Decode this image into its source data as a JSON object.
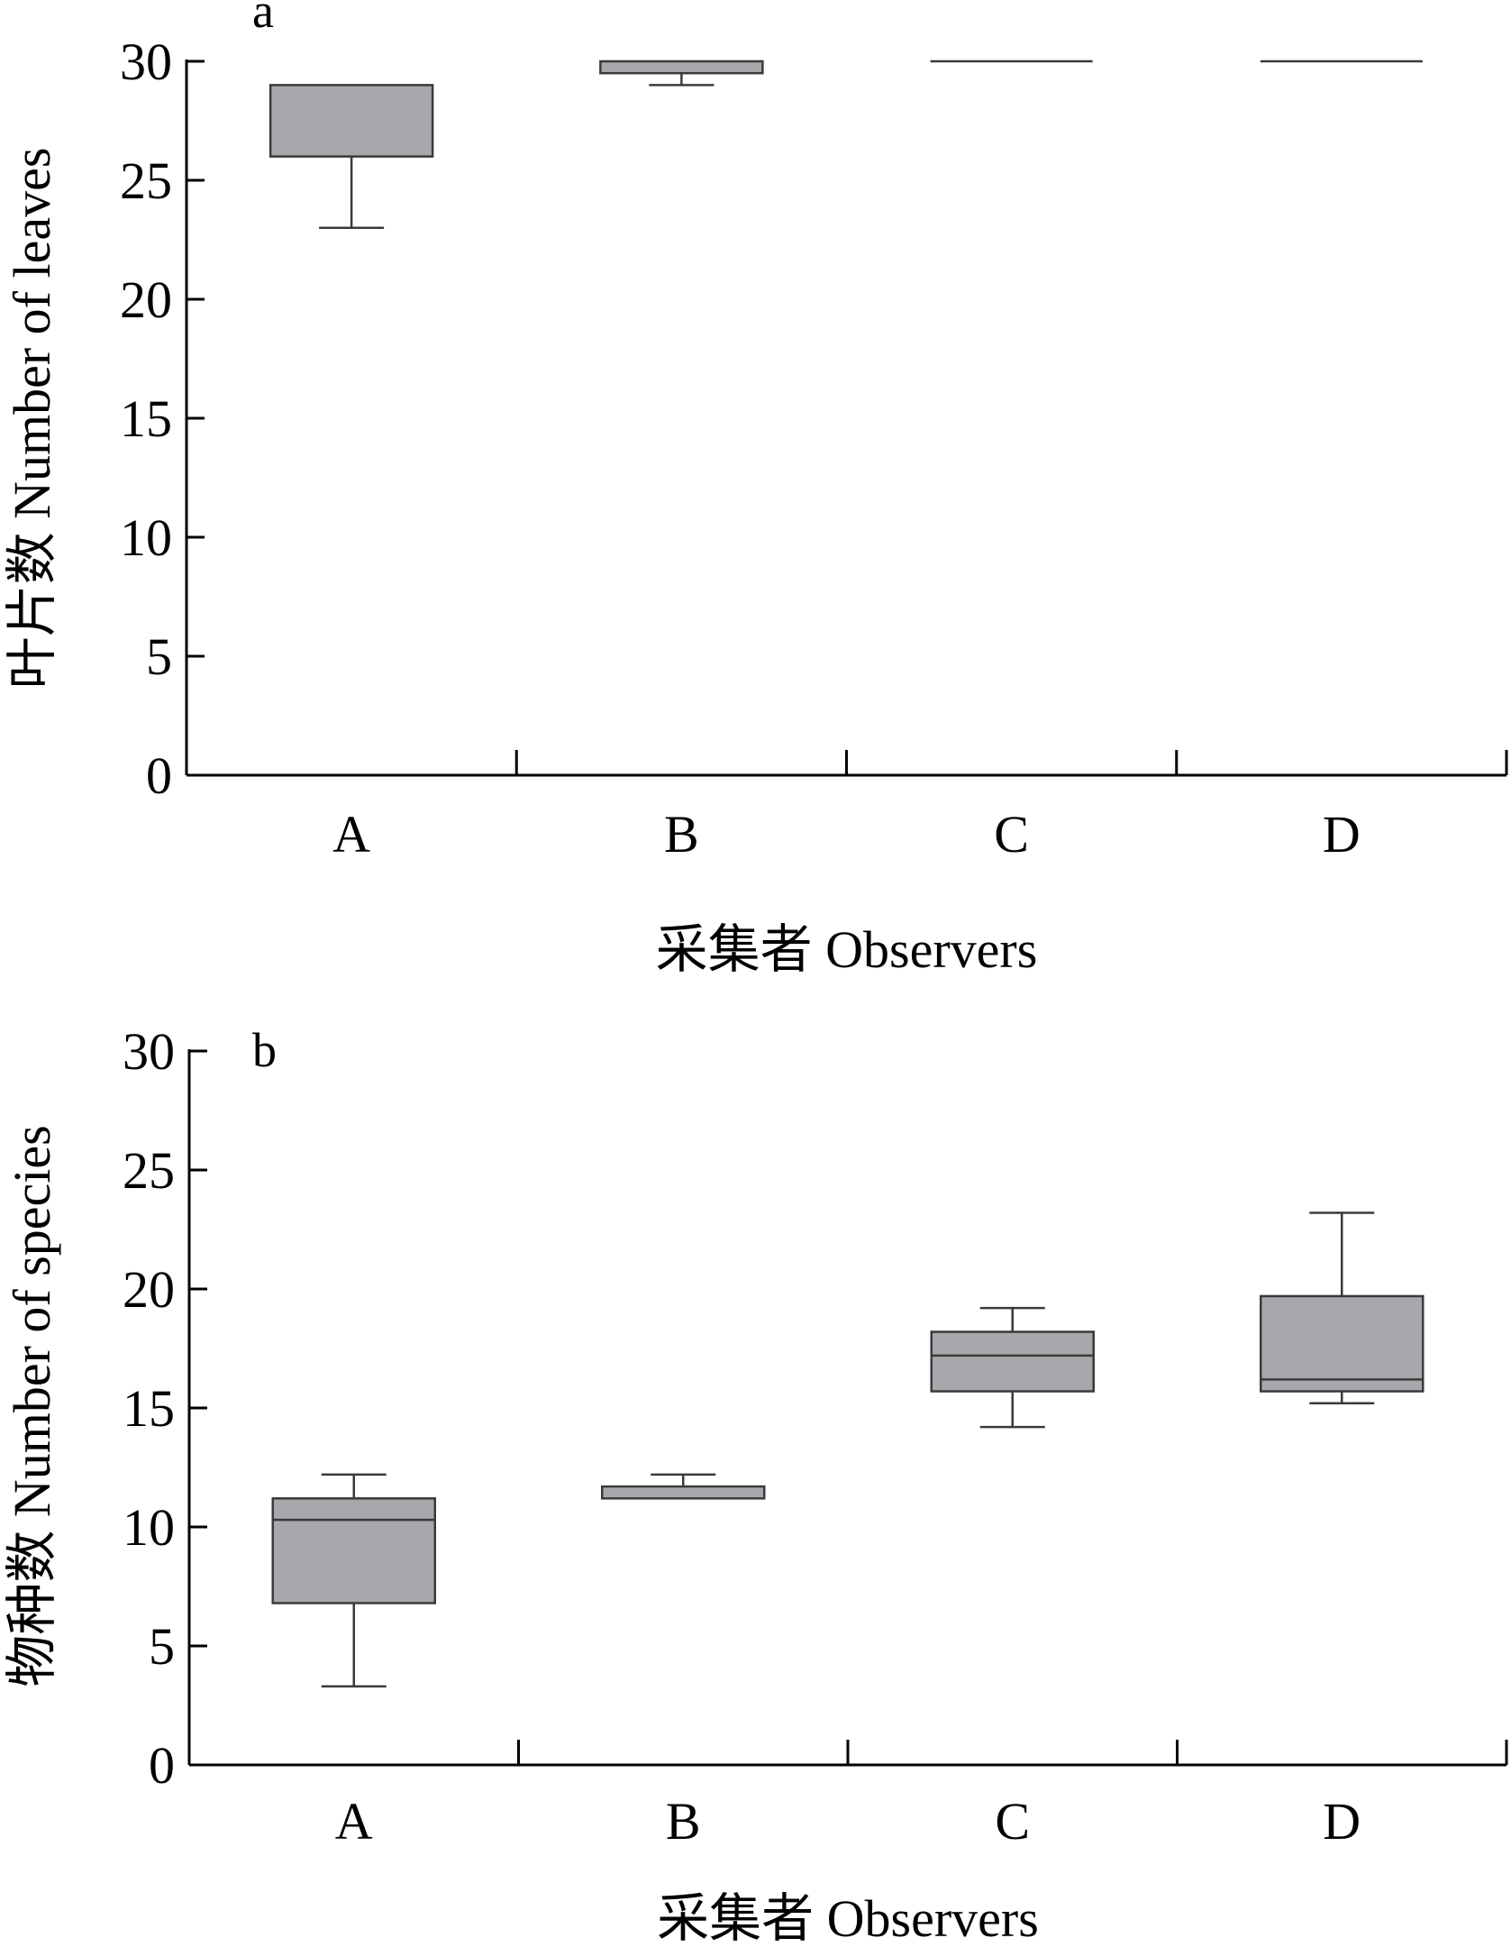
{
  "chart_data": [
    {
      "panel": "a",
      "type": "box",
      "categories": [
        "A",
        "B",
        "C",
        "D"
      ],
      "xlabel": "采集者 Observers",
      "ylabel": "叶片数 Number of leaves",
      "ylim": [
        0,
        30
      ],
      "yticks": [
        0,
        5,
        10,
        15,
        20,
        25,
        30
      ],
      "boxes": [
        {
          "category": "A",
          "whisker_low": 23,
          "q1": 26,
          "median": 26,
          "q3": 29,
          "whisker_high": 29
        },
        {
          "category": "B",
          "whisker_low": 29,
          "q1": 29.5,
          "median": 29.5,
          "q3": 30,
          "whisker_high": 30
        },
        {
          "category": "C",
          "whisker_low": 30,
          "q1": 30,
          "median": 30,
          "q3": 30,
          "whisker_high": 30
        },
        {
          "category": "D",
          "whisker_low": 30,
          "q1": 30,
          "median": 30,
          "q3": 30,
          "whisker_high": 30
        }
      ]
    },
    {
      "panel": "b",
      "type": "box",
      "categories": [
        "A",
        "B",
        "C",
        "D"
      ],
      "xlabel": "采集者 Observers",
      "ylabel": "物种数 Number of species",
      "ylim": [
        0,
        30
      ],
      "yticks": [
        0,
        5,
        10,
        15,
        20,
        25,
        30
      ],
      "boxes": [
        {
          "category": "A",
          "whisker_low": 3.3,
          "q1": 6.8,
          "median": 10.3,
          "q3": 11.2,
          "whisker_high": 12.2
        },
        {
          "category": "B",
          "whisker_low": 11.2,
          "q1": 11.2,
          "median": 11.2,
          "q3": 11.7,
          "whisker_high": 12.2
        },
        {
          "category": "C",
          "whisker_low": 14.2,
          "q1": 15.7,
          "median": 17.2,
          "q3": 18.2,
          "whisker_high": 19.2
        },
        {
          "category": "D",
          "whisker_low": 15.2,
          "q1": 15.7,
          "median": 16.2,
          "q3": 19.7,
          "whisker_high": 23.2
        }
      ]
    }
  ]
}
